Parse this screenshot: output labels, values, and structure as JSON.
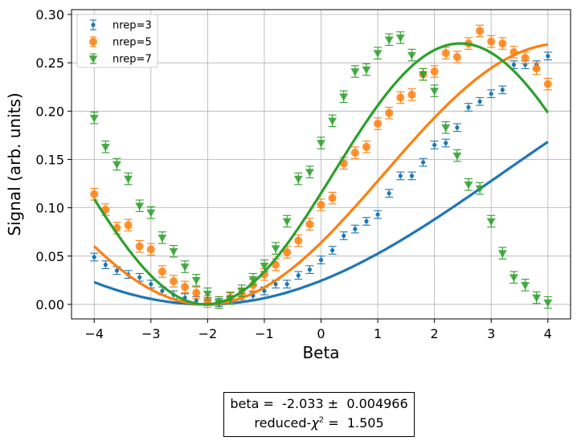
{
  "chart_data": {
    "type": "scatter",
    "xlabel": "Beta",
    "ylabel": "Signal (arb. units)",
    "xlim": [
      -4.4,
      4.4
    ],
    "ylim": [
      -0.015,
      0.305
    ],
    "xticks": [
      -4,
      -3,
      -2,
      -1,
      0,
      1,
      2,
      3,
      4
    ],
    "xtick_labels": [
      "−4",
      "−3",
      "−2",
      "−1",
      "0",
      "1",
      "2",
      "3",
      "4"
    ],
    "yticks": [
      0.0,
      0.05,
      0.1,
      0.15,
      0.2,
      0.25,
      0.3
    ],
    "ytick_labels": [
      "0.00",
      "0.05",
      "0.10",
      "0.15",
      "0.20",
      "0.25",
      "0.30"
    ],
    "grid": true,
    "legend_position": "top-left",
    "series": [
      {
        "name": "nrep=3",
        "color": "#1f77b4",
        "marker": "dot",
        "err": 0.004,
        "fit_nrep": 3,
        "x": [
          -4.0,
          -3.8,
          -3.6,
          -3.4,
          -3.2,
          -3.0,
          -2.8,
          -2.6,
          -2.4,
          -2.2,
          -2.0,
          -1.8,
          -1.6,
          -1.4,
          -1.2,
          -1.0,
          -0.8,
          -0.6,
          -0.4,
          -0.2,
          0.0,
          0.2,
          0.4,
          0.6,
          0.8,
          1.0,
          1.2,
          1.4,
          1.6,
          1.8,
          2.0,
          2.2,
          2.4,
          2.6,
          2.8,
          3.0,
          3.2,
          3.4,
          3.6,
          3.8,
          4.0
        ],
        "y": [
          0.049,
          0.041,
          0.035,
          0.031,
          0.028,
          0.021,
          0.014,
          0.01,
          0.007,
          0.004,
          0.003,
          0.002,
          0.004,
          0.007,
          0.009,
          0.014,
          0.021,
          0.021,
          0.03,
          0.036,
          0.046,
          0.056,
          0.071,
          0.078,
          0.086,
          0.093,
          0.115,
          0.133,
          0.133,
          0.147,
          0.165,
          0.167,
          0.183,
          0.204,
          0.21,
          0.218,
          0.222,
          0.248,
          0.248,
          0.248,
          0.257
        ]
      },
      {
        "name": "nrep=5",
        "color": "#ff7f0e",
        "marker": "circle",
        "err": 0.006,
        "fit_nrep": 5,
        "x": [
          -4.0,
          -3.8,
          -3.6,
          -3.4,
          -3.2,
          -3.0,
          -2.8,
          -2.6,
          -2.4,
          -2.2,
          -2.0,
          -1.8,
          -1.6,
          -1.4,
          -1.2,
          -1.0,
          -0.8,
          -0.6,
          -0.4,
          -0.2,
          0.0,
          0.2,
          0.4,
          0.6,
          0.8,
          1.0,
          1.2,
          1.4,
          1.6,
          1.8,
          2.0,
          2.2,
          2.4,
          2.6,
          2.8,
          3.0,
          3.2,
          3.4,
          3.6,
          3.8,
          4.0
        ],
        "y": [
          0.114,
          0.098,
          0.079,
          0.082,
          0.06,
          0.057,
          0.034,
          0.024,
          0.018,
          0.012,
          0.003,
          0.002,
          0.007,
          0.011,
          0.02,
          0.031,
          0.041,
          0.054,
          0.066,
          0.083,
          0.103,
          0.11,
          0.146,
          0.157,
          0.163,
          0.187,
          0.198,
          0.214,
          0.217,
          0.238,
          0.241,
          0.26,
          0.256,
          0.27,
          0.283,
          0.272,
          0.27,
          0.261,
          0.255,
          0.244,
          0.228
        ]
      },
      {
        "name": "nrep=7",
        "color": "#2ca02c",
        "marker": "triangle-down",
        "err": 0.006,
        "fit_nrep": 7,
        "x": [
          -4.0,
          -3.8,
          -3.6,
          -3.4,
          -3.2,
          -3.0,
          -2.8,
          -2.6,
          -2.4,
          -2.2,
          -2.0,
          -1.8,
          -1.6,
          -1.4,
          -1.2,
          -1.0,
          -0.8,
          -0.6,
          -0.4,
          -0.2,
          0.0,
          0.2,
          0.4,
          0.6,
          0.8,
          1.0,
          1.2,
          1.4,
          1.6,
          1.8,
          2.0,
          2.2,
          2.4,
          2.6,
          2.8,
          3.0,
          3.2,
          3.4,
          3.6,
          3.8,
          4.0
        ],
        "y": [
          0.193,
          0.163,
          0.145,
          0.13,
          0.102,
          0.095,
          0.069,
          0.055,
          0.039,
          0.025,
          0.011,
          0.002,
          0.006,
          0.014,
          0.026,
          0.04,
          0.058,
          0.086,
          0.13,
          0.137,
          0.167,
          0.19,
          0.215,
          0.241,
          0.243,
          0.26,
          0.274,
          0.276,
          0.258,
          0.238,
          0.221,
          0.183,
          0.154,
          0.124,
          0.12,
          0.086,
          0.053,
          0.028,
          0.02,
          0.007,
          0.002
        ]
      }
    ]
  },
  "fit_box": {
    "line1": "beta =  -2.033 ±  0.004966",
    "line2_prefix": "reduced-",
    "line2_symbol": "χ",
    "line2_exponent": "2",
    "line2_suffix": " =  1.505"
  }
}
